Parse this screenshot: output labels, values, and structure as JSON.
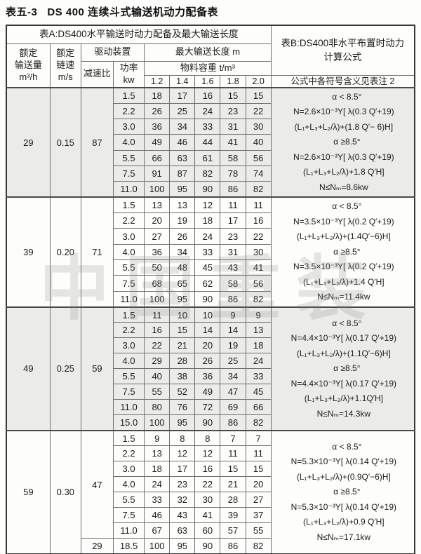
{
  "page": {
    "title_num": "表五-3",
    "title_text": "DS 400 连续斗式输送机动力配备表",
    "watermark": "中国重装"
  },
  "colors": {
    "shaded_block": "#ebebe9",
    "border_outer": "#383838",
    "border_inner": "#6e6e6e",
    "text": "#1b1b1b"
  },
  "table_a": {
    "title": "表A:DS400水平输送时动力配备及最大输送长度",
    "capacity_lines": [
      "额定",
      "输送量",
      "m³/h"
    ],
    "speed_lines": [
      "额定",
      "链速",
      "m/s"
    ],
    "drive_label": "驱动装置",
    "ratio_label": "减速比",
    "power_lines": [
      "功率",
      "kw"
    ],
    "length_label": "最大输送长度 m",
    "density_label": "物料容重 t/m³",
    "densities": [
      "1.2",
      "1.4",
      "1.6",
      "1.8",
      "2.0"
    ]
  },
  "table_b": {
    "title_line1": "表B:DS400非水平布置时动力",
    "title_line2": "计算公式",
    "note": "公式中各符号含义见表注 2"
  },
  "blocks": [
    {
      "capacity": "29",
      "speed": "0.15",
      "shaded": true,
      "ratio_groups": [
        {
          "ratio": "87",
          "span": 7
        }
      ],
      "rows": [
        {
          "power": "1.5",
          "lengths": [
            "18",
            "17",
            "16",
            "15",
            "15"
          ]
        },
        {
          "power": "2.2",
          "lengths": [
            "26",
            "25",
            "24",
            "23",
            "22"
          ]
        },
        {
          "power": "3.0",
          "lengths": [
            "36",
            "34",
            "33",
            "31",
            "30"
          ]
        },
        {
          "power": "4.0",
          "lengths": [
            "49",
            "46",
            "44",
            "41",
            "40"
          ]
        },
        {
          "power": "5.5",
          "lengths": [
            "66",
            "63",
            "61",
            "58",
            "56"
          ]
        },
        {
          "power": "7.5",
          "lengths": [
            "91",
            "87",
            "82",
            "78",
            "74"
          ]
        },
        {
          "power": "11.0",
          "lengths": [
            "100",
            "95",
            "90",
            "86",
            "82"
          ]
        }
      ],
      "formulas": [
        "α < 8.5°",
        "N=2.6×10⁻³Y[ λ(0.3 Q′+19)",
        "(L₁+L₃+L₂/λ)+(1.8 Q′− 6)H]",
        "α ≥8.5°",
        "N=2.6×10⁻³Y[ λ(0.3 Q′+19)",
        "(L₁+L₃+L₂/λ)+1.8 Q′H]",
        "N≤Nₘ=8.6kw"
      ]
    },
    {
      "capacity": "39",
      "speed": "0.20",
      "shaded": false,
      "ratio_groups": [
        {
          "ratio": "71",
          "span": 7
        }
      ],
      "rows": [
        {
          "power": "1.5",
          "lengths": [
            "13",
            "13",
            "12",
            "11",
            "11"
          ]
        },
        {
          "power": "2.2",
          "lengths": [
            "20",
            "19",
            "18",
            "17",
            "16"
          ]
        },
        {
          "power": "3.0",
          "lengths": [
            "27",
            "26",
            "24",
            "23",
            "22"
          ]
        },
        {
          "power": "4.0",
          "lengths": [
            "36",
            "34",
            "33",
            "31",
            "30"
          ]
        },
        {
          "power": "5.5",
          "lengths": [
            "50",
            "48",
            "45",
            "43",
            "41"
          ]
        },
        {
          "power": "7.5",
          "lengths": [
            "68",
            "65",
            "62",
            "58",
            "56"
          ]
        },
        {
          "power": "11.0",
          "lengths": [
            "100",
            "95",
            "90",
            "86",
            "82"
          ]
        }
      ],
      "formulas": [
        "α < 8.5°",
        "N=3.5×10⁻³Y[ λ(0.2 Q′+19)",
        "(L₁+L₃+L₂/λ)+(1.4Q′−6)H]",
        "α ≥8.5°",
        "N=3.5×10⁻³Y[ λ(0.2 Q′+19)",
        "(L₁+L₃+L₂/λ)+1.4 Q′H]",
        "N≤Nₘ=11.4kw"
      ]
    },
    {
      "capacity": "49",
      "speed": "0.25",
      "shaded": true,
      "ratio_groups": [
        {
          "ratio": "59",
          "span": 8
        }
      ],
      "rows": [
        {
          "power": "1.5",
          "lengths": [
            "11",
            "10",
            "10",
            "9",
            "9"
          ]
        },
        {
          "power": "2.2",
          "lengths": [
            "16",
            "15",
            "14",
            "14",
            "13"
          ]
        },
        {
          "power": "3.0",
          "lengths": [
            "22",
            "21",
            "20",
            "19",
            "18"
          ]
        },
        {
          "power": "4.0",
          "lengths": [
            "29",
            "28",
            "26",
            "25",
            "24"
          ]
        },
        {
          "power": "5.5",
          "lengths": [
            "40",
            "38",
            "36",
            "34",
            "33"
          ]
        },
        {
          "power": "7.5",
          "lengths": [
            "55",
            "52",
            "49",
            "47",
            "45"
          ]
        },
        {
          "power": "11.0",
          "lengths": [
            "80",
            "76",
            "72",
            "69",
            "66"
          ]
        },
        {
          "power": "15.0",
          "lengths": [
            "100",
            "95",
            "90",
            "86",
            "82"
          ]
        }
      ],
      "formulas": [
        "α < 8.5°",
        "N=4.4×10⁻³Y[ λ(0.17 Q′+19)",
        "(L₁+L₃+L₂/λ)+(1.1Q′−6)H]",
        "α ≥8.5°",
        "N=4.4×10⁻³Y[ λ(0.17 Q′+19)",
        "(L₁+L₃+L₂/λ)+1.1Q′H]",
        "N≤Nₘ=14.3kw"
      ]
    },
    {
      "capacity": "59",
      "speed": "0.30",
      "shaded": false,
      "ratio_groups": [
        {
          "ratio": "47",
          "span": 7
        },
        {
          "ratio": "29",
          "span": 1
        }
      ],
      "rows": [
        {
          "power": "1.5",
          "lengths": [
            "9",
            "8",
            "8",
            "7",
            "7"
          ]
        },
        {
          "power": "2.2",
          "lengths": [
            "13",
            "12",
            "12",
            "11",
            "11"
          ]
        },
        {
          "power": "3.0",
          "lengths": [
            "18",
            "17",
            "16",
            "15",
            "15"
          ]
        },
        {
          "power": "4.0",
          "lengths": [
            "24",
            "23",
            "22",
            "21",
            "20"
          ]
        },
        {
          "power": "5.5",
          "lengths": [
            "33",
            "32",
            "30",
            "28",
            "27"
          ]
        },
        {
          "power": "7.5",
          "lengths": [
            "46",
            "43",
            "41",
            "39",
            "37"
          ]
        },
        {
          "power": "11.0",
          "lengths": [
            "67",
            "63",
            "60",
            "57",
            "55"
          ]
        },
        {
          "power": "18.5",
          "lengths": [
            "100",
            "95",
            "90",
            "86",
            "82"
          ]
        }
      ],
      "formulas": [
        "α < 8.5°",
        "N=5.3×10⁻³Y[ λ(0.14 Q′+19)",
        "(L₁+L₃+L₂/λ)+(0.9Q′−6)H]",
        "α ≥8.5°",
        "N=5.3×10⁻³Y[ λ(0.14 Q′+19)",
        "(L₁+L₃+L₂/λ)+0.9 Q′H]",
        "N≤Nₘ=17.1kw"
      ]
    }
  ]
}
